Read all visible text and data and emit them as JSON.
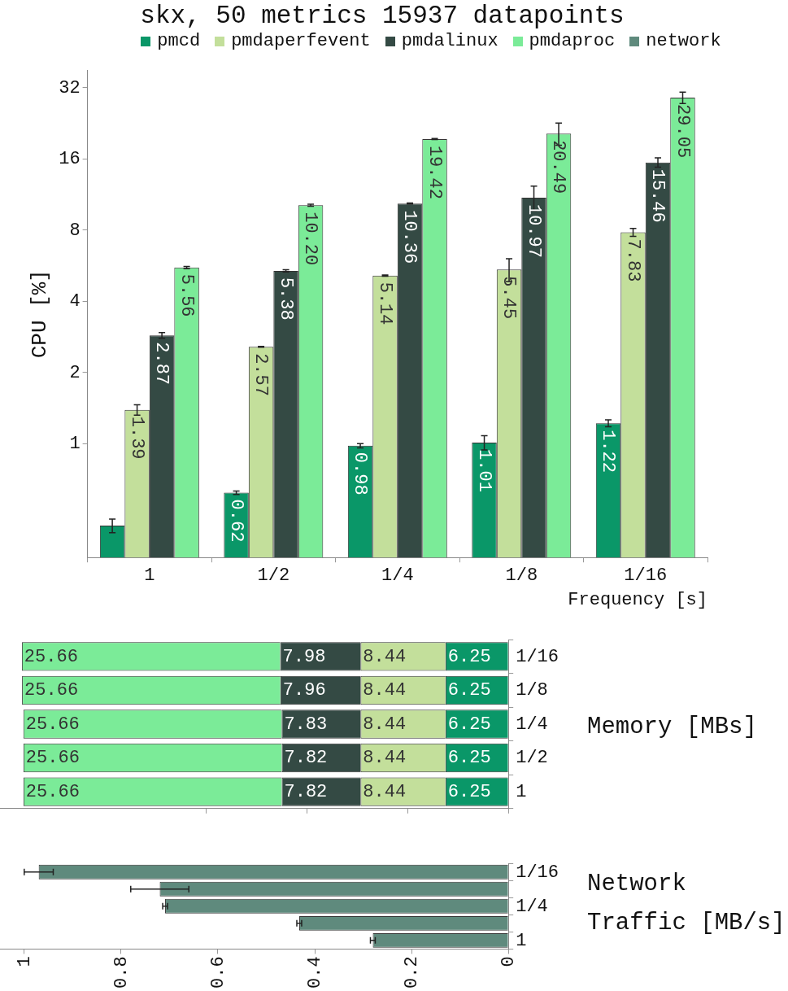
{
  "chart_data": [
    {
      "type": "bar",
      "title": "skx, 50 metrics 15937 datapoints",
      "ylabel": "CPU [%]",
      "xlabel": "Frequency [s]",
      "categories": [
        "1",
        "1/2",
        "1/4",
        "1/8",
        "1/16"
      ],
      "log": true,
      "ylim": [
        0.33,
        38
      ],
      "yticks": [
        1,
        2,
        4,
        8,
        16,
        32
      ],
      "legend": "top",
      "grid": false,
      "series": [
        {
          "name": "pmcd",
          "color": "#0a9768",
          "values": [
            0.45,
            0.62,
            0.98,
            1.01,
            1.22
          ],
          "errors": [
            0.03,
            0.01,
            0.02,
            0.07,
            0.04
          ],
          "value_labels": [
            null,
            "0.62",
            "0.98",
            "1.01",
            "1.22"
          ]
        },
        {
          "name": "pmdaperfevent",
          "color": "#c3df9b",
          "values": [
            1.39,
            2.57,
            5.14,
            5.45,
            7.83
          ],
          "errors": [
            0.07,
            0.01,
            0.03,
            0.6,
            0.3
          ],
          "value_labels": [
            "1.39",
            "2.57",
            "5.14",
            "5.45",
            "7.83"
          ]
        },
        {
          "name": "pmdalinux",
          "color": "#344a44",
          "values": [
            2.87,
            5.38,
            10.36,
            10.97,
            15.46
          ],
          "errors": [
            0.08,
            0.06,
            0.05,
            1.3,
            0.7
          ],
          "value_labels": [
            "2.87",
            "5.38",
            "10.36",
            "10.97",
            "15.46"
          ]
        },
        {
          "name": "pmdaproc",
          "color": "#7beb98",
          "values": [
            5.56,
            10.2,
            19.42,
            20.49,
            29.05
          ],
          "errors": [
            0.06,
            0.1,
            0.1,
            2.2,
            1.6
          ],
          "value_labels": [
            "5.56",
            "10.20",
            "19.42",
            "20.49",
            "29.05"
          ]
        }
      ]
    },
    {
      "type": "bar",
      "orientation": "horizontal",
      "stacked": true,
      "ylabel": "Memory [MBs]",
      "categories": [
        "1/16",
        "1/8",
        "1/4",
        "1/2",
        "1"
      ],
      "xlim": [
        50.5,
        0
      ],
      "xticks": [
        {
          "value": 0,
          "label": null
        },
        {
          "value": 10,
          "label": null
        },
        {
          "value": 20,
          "label": null
        },
        {
          "value": 30,
          "label": null
        }
      ],
      "tick_labels": "y",
      "data_labels": true,
      "series": [
        {
          "name": "pmcd",
          "color": "#0a9768",
          "values": [
            6.25,
            6.25,
            6.25,
            6.25,
            6.25
          ]
        },
        {
          "name": "pmdaperfevent",
          "color": "#c3df9b",
          "values": [
            8.44,
            8.44,
            8.44,
            8.44,
            8.44
          ]
        },
        {
          "name": "pmdalinux",
          "color": "#344a44",
          "values": [
            7.98,
            7.96,
            7.83,
            7.82,
            7.82
          ]
        },
        {
          "name": "pmdaproc",
          "color": "#7beb98",
          "values": [
            25.66,
            25.66,
            25.66,
            25.66,
            25.66
          ]
        }
      ]
    },
    {
      "type": "bar",
      "orientation": "horizontal",
      "ylabel": "Network Traffic [MB/s]",
      "categories": [
        "1/16",
        null,
        "1/4",
        null,
        "1"
      ],
      "xlim": [
        1.05,
        0
      ],
      "xticks": [
        0,
        0.2,
        0.4,
        0.6,
        0.8,
        1
      ],
      "series": [
        {
          "name": "network",
          "color": "#5f8a7d",
          "values": [
            0.97,
            0.72,
            0.709,
            0.432,
            0.28
          ],
          "errors": [
            [
              0.94,
              1.0
            ],
            [
              0.66,
              0.78
            ],
            [
              0.704,
              0.714
            ],
            [
              0.427,
              0.437
            ],
            [
              0.275,
              0.285
            ]
          ]
        }
      ]
    }
  ]
}
